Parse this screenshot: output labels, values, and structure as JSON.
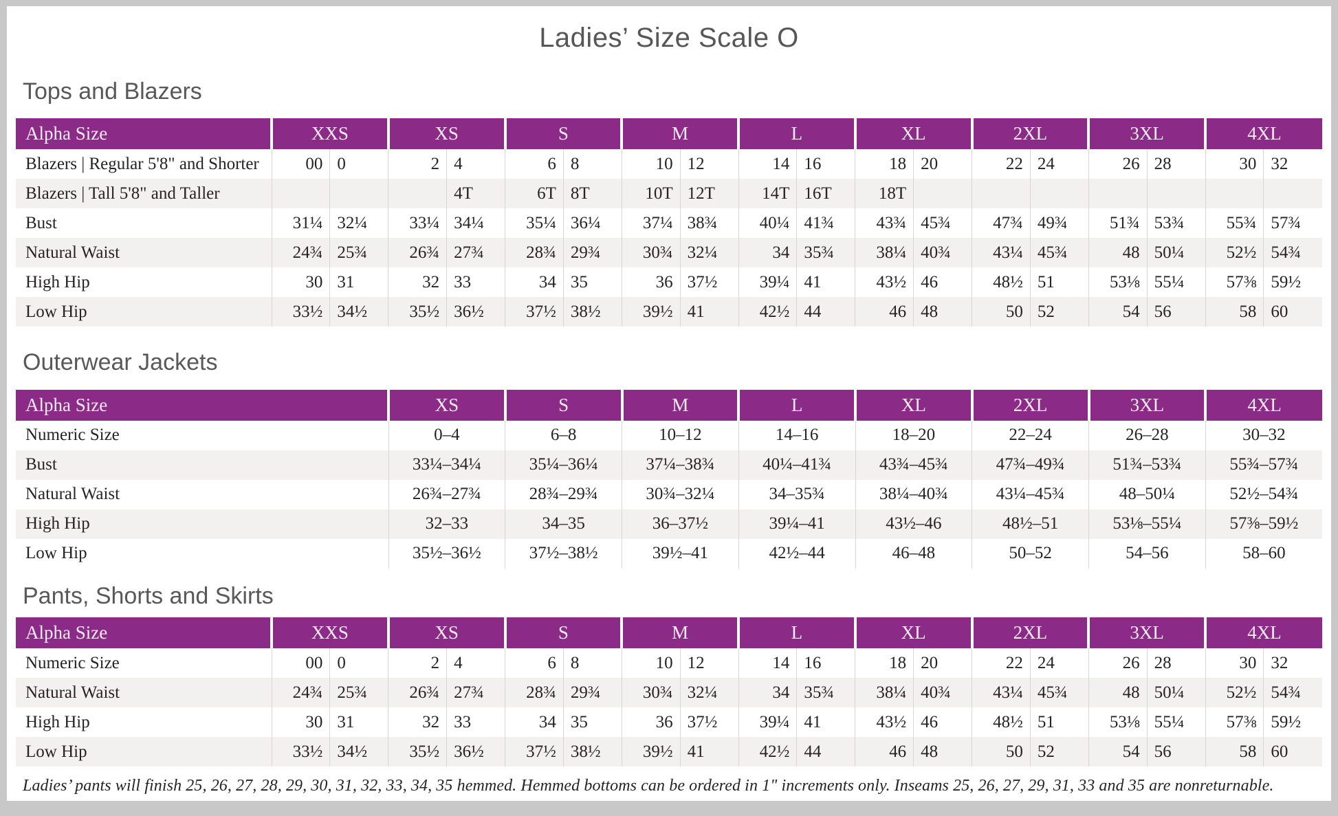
{
  "page": {
    "title": "Ladies’ Size Scale O",
    "footnote": "Ladies’ pants will finish 25, 26, 27, 28, 29, 30, 31, 32, 33, 34, 35 hemmed. Hemmed bottoms can be ordered in 1\" increments only. Inseams 25, 26, 27, 29, 31, 33 and 35 are nonreturnable."
  },
  "colors": {
    "header_bg": "#8c2a87",
    "header_text": "#f9ecf6",
    "row_stripe": "#f2f1ef",
    "body_text": "#272324",
    "heading_text": "#58585b",
    "cell_border": "#d9d6d1",
    "page_frame": "#c9c8c8"
  },
  "tables": [
    {
      "heading": "Tops and Blazers",
      "type": "paired",
      "header_label": "Alpha Size",
      "sizes": [
        "XXS",
        "XS",
        "S",
        "M",
        "L",
        "XL",
        "2XL",
        "3XL",
        "4XL"
      ],
      "rows": [
        {
          "label": "Blazers | Regular 5'8\" and Shorter",
          "values": [
            [
              "00",
              "0"
            ],
            [
              "2",
              "4"
            ],
            [
              "6",
              "8"
            ],
            [
              "10",
              "12"
            ],
            [
              "14",
              "16"
            ],
            [
              "18",
              "20"
            ],
            [
              "22",
              "24"
            ],
            [
              "26",
              "28"
            ],
            [
              "30",
              "32"
            ]
          ]
        },
        {
          "label": "Blazers | Tall 5'8\" and Taller",
          "values": [
            [
              "",
              ""
            ],
            [
              "",
              "4T"
            ],
            [
              "6T",
              "8T"
            ],
            [
              "10T",
              "12T"
            ],
            [
              "14T",
              "16T"
            ],
            [
              "18T",
              ""
            ],
            [
              "",
              ""
            ],
            [
              "",
              ""
            ],
            [
              "",
              ""
            ]
          ]
        },
        {
          "label": "Bust",
          "values": [
            [
              "31¼",
              "32¼"
            ],
            [
              "33¼",
              "34¼"
            ],
            [
              "35¼",
              "36¼"
            ],
            [
              "37¼",
              "38¾"
            ],
            [
              "40¼",
              "41¾"
            ],
            [
              "43¾",
              "45¾"
            ],
            [
              "47¾",
              "49¾"
            ],
            [
              "51¾",
              "53¾"
            ],
            [
              "55¾",
              "57¾"
            ]
          ]
        },
        {
          "label": "Natural Waist",
          "values": [
            [
              "24¾",
              "25¾"
            ],
            [
              "26¾",
              "27¾"
            ],
            [
              "28¾",
              "29¾"
            ],
            [
              "30¾",
              "32¼"
            ],
            [
              "34",
              "35¾"
            ],
            [
              "38¼",
              "40¾"
            ],
            [
              "43¼",
              "45¾"
            ],
            [
              "48",
              "50¼"
            ],
            [
              "52½",
              "54¾"
            ]
          ]
        },
        {
          "label": "High Hip",
          "values": [
            [
              "30",
              "31"
            ],
            [
              "32",
              "33"
            ],
            [
              "34",
              "35"
            ],
            [
              "36",
              "37½"
            ],
            [
              "39¼",
              "41"
            ],
            [
              "43½",
              "46"
            ],
            [
              "48½",
              "51"
            ],
            [
              "53⅛",
              "55¼"
            ],
            [
              "57⅜",
              "59½"
            ]
          ]
        },
        {
          "label": "Low Hip",
          "values": [
            [
              "33½",
              "34½"
            ],
            [
              "35½",
              "36½"
            ],
            [
              "37½",
              "38½"
            ],
            [
              "39½",
              "41"
            ],
            [
              "42½",
              "44"
            ],
            [
              "46",
              "48"
            ],
            [
              "50",
              "52"
            ],
            [
              "54",
              "56"
            ],
            [
              "58",
              "60"
            ]
          ]
        }
      ]
    },
    {
      "heading": "Outerwear Jackets",
      "type": "single",
      "header_label": "Alpha Size",
      "sizes": [
        "XS",
        "S",
        "M",
        "L",
        "XL",
        "2XL",
        "3XL",
        "4XL"
      ],
      "rows": [
        {
          "label": "Numeric Size",
          "values": [
            "0–4",
            "6–8",
            "10–12",
            "14–16",
            "18–20",
            "22–24",
            "26–28",
            "30–32"
          ]
        },
        {
          "label": "Bust",
          "values": [
            "33¼–34¼",
            "35¼–36¼",
            "37¼–38¾",
            "40¼–41¾",
            "43¾–45¾",
            "47¾–49¾",
            "51¾–53¾",
            "55¾–57¾"
          ]
        },
        {
          "label": "Natural Waist",
          "values": [
            "26¾–27¾",
            "28¾–29¾",
            "30¾–32¼",
            "34–35¾",
            "38¼–40¾",
            "43¼–45¾",
            "48–50¼",
            "52½–54¾"
          ]
        },
        {
          "label": "High Hip",
          "values": [
            "32–33",
            "34–35",
            "36–37½",
            "39¼–41",
            "43½–46",
            "48½–51",
            "53⅛–55¼",
            "57⅜–59½"
          ]
        },
        {
          "label": "Low Hip",
          "values": [
            "35½–36½",
            "37½–38½",
            "39½–41",
            "42½–44",
            "46–48",
            "50–52",
            "54–56",
            "58–60"
          ]
        }
      ]
    },
    {
      "heading": "Pants, Shorts and Skirts",
      "type": "paired",
      "header_label": "Alpha Size",
      "sizes": [
        "XXS",
        "XS",
        "S",
        "M",
        "L",
        "XL",
        "2XL",
        "3XL",
        "4XL"
      ],
      "rows": [
        {
          "label": "Numeric Size",
          "values": [
            [
              "00",
              "0"
            ],
            [
              "2",
              "4"
            ],
            [
              "6",
              "8"
            ],
            [
              "10",
              "12"
            ],
            [
              "14",
              "16"
            ],
            [
              "18",
              "20"
            ],
            [
              "22",
              "24"
            ],
            [
              "26",
              "28"
            ],
            [
              "30",
              "32"
            ]
          ]
        },
        {
          "label": "Natural Waist",
          "values": [
            [
              "24¾",
              "25¾"
            ],
            [
              "26¾",
              "27¾"
            ],
            [
              "28¾",
              "29¾"
            ],
            [
              "30¾",
              "32¼"
            ],
            [
              "34",
              "35¾"
            ],
            [
              "38¼",
              "40¾"
            ],
            [
              "43¼",
              "45¾"
            ],
            [
              "48",
              "50¼"
            ],
            [
              "52½",
              "54¾"
            ]
          ]
        },
        {
          "label": "High Hip",
          "values": [
            [
              "30",
              "31"
            ],
            [
              "32",
              "33"
            ],
            [
              "34",
              "35"
            ],
            [
              "36",
              "37½"
            ],
            [
              "39¼",
              "41"
            ],
            [
              "43½",
              "46"
            ],
            [
              "48½",
              "51"
            ],
            [
              "53⅛",
              "55¼"
            ],
            [
              "57⅜",
              "59½"
            ]
          ]
        },
        {
          "label": "Low Hip",
          "values": [
            [
              "33½",
              "34½"
            ],
            [
              "35½",
              "36½"
            ],
            [
              "37½",
              "38½"
            ],
            [
              "39½",
              "41"
            ],
            [
              "42½",
              "44"
            ],
            [
              "46",
              "48"
            ],
            [
              "50",
              "52"
            ],
            [
              "54",
              "56"
            ],
            [
              "58",
              "60"
            ]
          ]
        }
      ]
    }
  ]
}
